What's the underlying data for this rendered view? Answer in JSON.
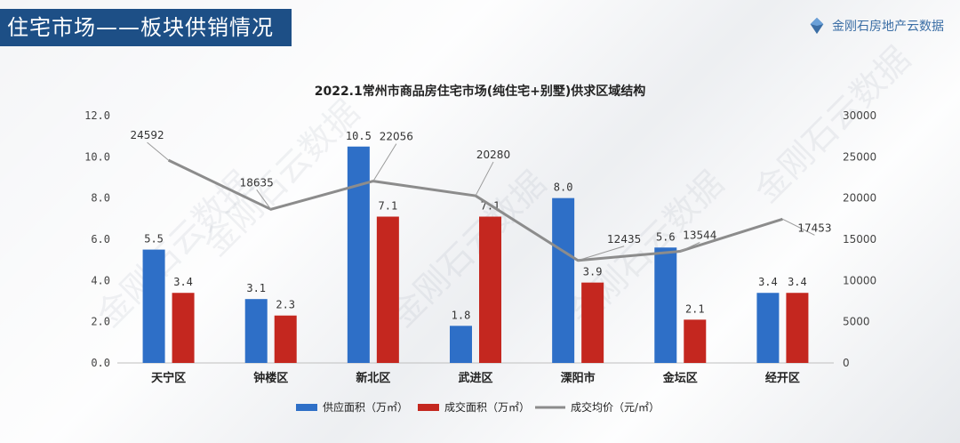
{
  "header": {
    "banner_title": "住宅市场——板块供销情况",
    "brand_name": "金刚石房地产云数据",
    "watermark_text": "金刚石云数据"
  },
  "colors": {
    "banner_bg": "#1d4f86",
    "supply_bar": "#2e6fc7",
    "deal_bar": "#c4271f",
    "price_line": "#8c8c8c",
    "brand": "#3b6ea5"
  },
  "chart_data": {
    "type": "bar",
    "title": "2022.1常州市商品房住宅市场(纯住宅+别墅)供求区域结构",
    "categories": [
      "天宁区",
      "钟楼区",
      "新北区",
      "武进区",
      "溧阳市",
      "金坛区",
      "经开区"
    ],
    "series": [
      {
        "name": "供应面积（万㎡）",
        "type": "bar",
        "axis": "left",
        "values": [
          5.5,
          3.1,
          10.5,
          1.8,
          8.0,
          5.6,
          3.4
        ],
        "labels": [
          "5.5",
          "3.1",
          "10.5",
          "1.8",
          "8.0",
          "5.6",
          "3.4"
        ]
      },
      {
        "name": "成交面积（万㎡）",
        "type": "bar",
        "axis": "left",
        "values": [
          3.4,
          2.3,
          7.1,
          7.1,
          3.9,
          2.1,
          3.4
        ],
        "labels": [
          "3.4",
          "2.3",
          "7.1",
          "7.1",
          "3.9",
          "2.1",
          "3.4"
        ]
      },
      {
        "name": "成交均价（元/㎡）",
        "type": "line",
        "axis": "right",
        "values": [
          24592,
          18635,
          22056,
          20280,
          12435,
          13544,
          17453
        ],
        "labels": [
          "24592",
          "18635",
          "22056",
          "20280",
          "12435",
          "13544",
          "17453"
        ]
      }
    ],
    "y_left": {
      "min": 0,
      "max": 12,
      "ticks": [
        "0.0",
        "2.0",
        "4.0",
        "6.0",
        "8.0",
        "10.0",
        "12.0"
      ]
    },
    "y_right": {
      "min": 0,
      "max": 30000,
      "ticks": [
        "0",
        "5000",
        "10000",
        "15000",
        "20000",
        "25000",
        "30000"
      ]
    },
    "grid": false,
    "legend_position": "bottom"
  }
}
